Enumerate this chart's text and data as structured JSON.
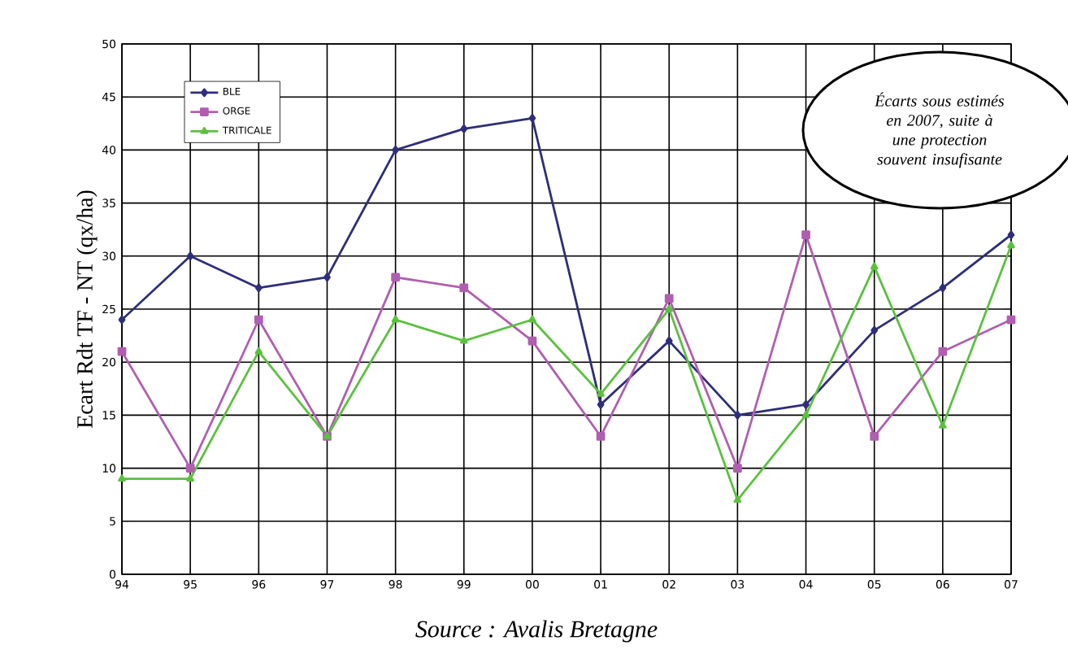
{
  "chart_data": {
    "type": "line",
    "ylabel": "Ecart Rdt TF - NT (qx/ha)",
    "categories": [
      "94",
      "95",
      "96",
      "97",
      "98",
      "99",
      "00",
      "01",
      "02",
      "03",
      "04",
      "05",
      "06",
      "07"
    ],
    "series": [
      {
        "name": "BLE",
        "color": "#2e2e7a",
        "marker": "diamond",
        "values": [
          24,
          30,
          27,
          28,
          40,
          42,
          43,
          16,
          22,
          15,
          16,
          23,
          27,
          32
        ]
      },
      {
        "name": "ORGE",
        "color": "#b05fb0",
        "marker": "square",
        "values": [
          21,
          10,
          24,
          13,
          28,
          27,
          22,
          13,
          26,
          10,
          32,
          13,
          21,
          24
        ]
      },
      {
        "name": "TRITICALE",
        "color": "#5cc040",
        "marker": "triangle",
        "values": [
          9,
          9,
          21,
          13,
          24,
          22,
          24,
          17,
          25,
          7,
          15,
          29,
          14,
          31
        ]
      }
    ],
    "ylim": [
      0,
      50
    ],
    "yticks": [
      0,
      5,
      10,
      15,
      20,
      25,
      30,
      35,
      40,
      45,
      50
    ],
    "grid": true,
    "legend": "top left",
    "line_style": "solid",
    "annotations": [
      "Écarts sous estimés en 2007, suite à une protection souvent insufisante",
      "Source : Avalis Bretagne"
    ]
  }
}
